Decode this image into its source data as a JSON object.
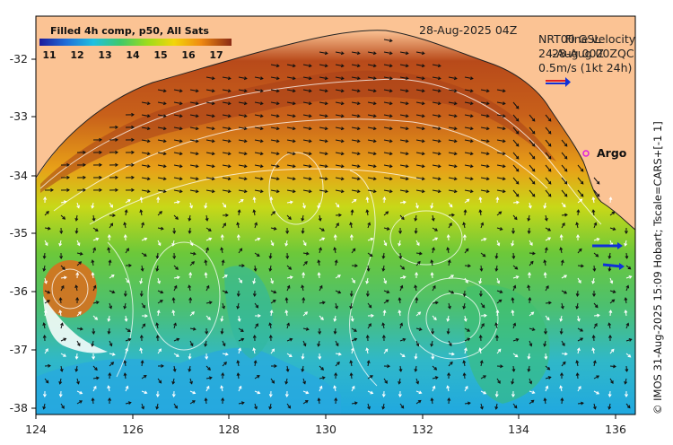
{
  "map": {
    "date_label": "28-Aug-2025 04Z",
    "colorbar": {
      "title": "Filled 4h comp, p50, All Sats",
      "ticks": [
        "11",
        "12",
        "13",
        "14",
        "15",
        "16",
        "17"
      ],
      "colors": [
        "#1a1a9c",
        "#1f6fd8",
        "#20c0e0",
        "#3fc96a",
        "#9bdc1c",
        "#f2d60a",
        "#f08a12",
        "#c8501a",
        "#8a2a14"
      ]
    },
    "legend": {
      "line1_a": "NRT00 GSL",
      "line1_b": "Fine velocity",
      "line2_a": "24-Aug 00Z",
      "line2_b": "28-Aug 00ZQC",
      "scale": "0.5m/s (1kt 24h)"
    },
    "argo_label": "Argo",
    "x_ticks": [
      "124",
      "126",
      "128",
      "130",
      "132",
      "134",
      "136"
    ],
    "y_ticks": [
      "-32",
      "-33",
      "-34",
      "-35",
      "-36",
      "-37",
      "-38"
    ],
    "credit": "© IMOS 31-Aug-2025 15:09 Hobart; Tscale=CARS+[-1 1]",
    "colors": {
      "land": "#fbc394",
      "arrow_blue": "#1030d8",
      "argo": "#e020e0"
    }
  }
}
